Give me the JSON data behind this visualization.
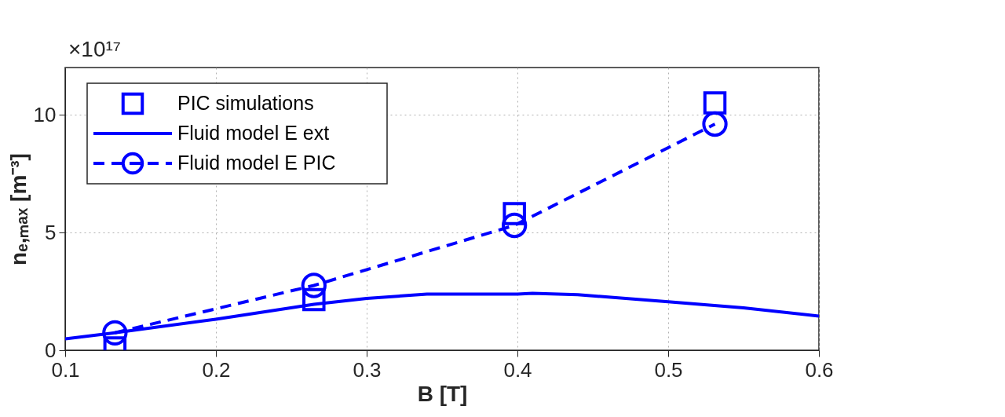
{
  "chart_data": {
    "type": "line",
    "xlabel": "B [T]",
    "ylabel": "nₑ,ₘₐₓ [m⁻³]",
    "annotations": [
      "×10¹⁷"
    ],
    "xlim": [
      0.1,
      0.6
    ],
    "xticks": [
      0.1,
      0.2,
      0.3,
      0.4,
      0.5,
      0.6
    ],
    "ylim": [
      0,
      12
    ],
    "yticks": [
      0,
      5,
      10
    ],
    "grid": true,
    "legend": "top left",
    "series": [
      {
        "name": "PIC simulations",
        "type": "scatter",
        "marker": "square",
        "color": "#0000ff",
        "x": [
          0.133,
          0.265,
          0.398,
          0.531
        ],
        "values": [
          0.1,
          2.15,
          5.8,
          10.5
        ]
      },
      {
        "name": "Fluid model E ext",
        "marker": "none",
        "line_style": "solid",
        "color": "#0000ff",
        "x": [
          0.1,
          0.13,
          0.2,
          0.265,
          0.3,
          0.34,
          0.4,
          0.41,
          0.44,
          0.5,
          0.55,
          0.6
        ],
        "values": [
          0.48,
          0.72,
          1.32,
          1.95,
          2.2,
          2.38,
          2.38,
          2.42,
          2.36,
          2.06,
          1.8,
          1.45
        ]
      },
      {
        "name": "Fluid model E PIC",
        "type": "line",
        "marker": "circle",
        "line_style": "dashed",
        "color": "#0000ff",
        "x": [
          0.133,
          0.265,
          0.398,
          0.531
        ],
        "values": [
          0.74,
          2.75,
          5.3,
          9.6
        ]
      }
    ]
  }
}
